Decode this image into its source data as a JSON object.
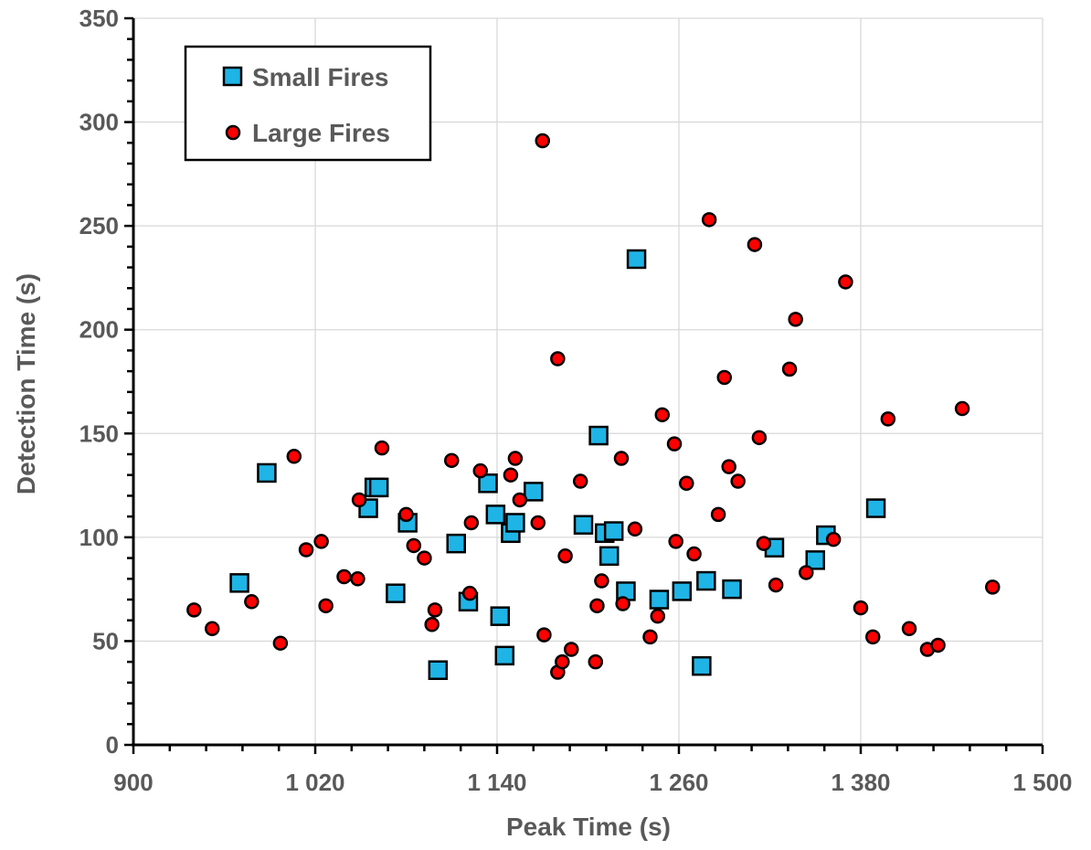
{
  "chart_data": {
    "type": "scatter",
    "xlabel": "Peak Time (s)",
    "ylabel": "Detection Time (s)",
    "xlim": [
      900,
      1500
    ],
    "ylim": [
      0,
      350
    ],
    "x_ticks": [
      900,
      1020,
      1140,
      1260,
      1380,
      1500
    ],
    "x_tick_labels": [
      "900",
      "1 020",
      "1 140",
      "1 260",
      "1 380",
      "1 500"
    ],
    "y_ticks": [
      0,
      50,
      100,
      150,
      200,
      250,
      300,
      350
    ],
    "y_tick_labels": [
      "0",
      "50",
      "100",
      "150",
      "200",
      "250",
      "300",
      "350"
    ],
    "grid": true,
    "legend_position": "top-left",
    "colors": {
      "small": "#1fb4e6",
      "large": "#ff0000",
      "axis": "#000000",
      "grid": "#d9d9d9",
      "text": "#595959"
    },
    "series": [
      {
        "name": "Small Fires",
        "marker": "square",
        "points": [
          [
            970,
            78
          ],
          [
            988,
            131
          ],
          [
            1055,
            114
          ],
          [
            1059,
            124
          ],
          [
            1062,
            124
          ],
          [
            1073,
            73
          ],
          [
            1081,
            107
          ],
          [
            1101,
            36
          ],
          [
            1113,
            97
          ],
          [
            1121,
            69
          ],
          [
            1134,
            126
          ],
          [
            1139,
            111
          ],
          [
            1142,
            62
          ],
          [
            1145,
            43
          ],
          [
            1149,
            102
          ],
          [
            1152,
            107
          ],
          [
            1164,
            122
          ],
          [
            1197,
            106
          ],
          [
            1207,
            149
          ],
          [
            1211,
            102
          ],
          [
            1214,
            91
          ],
          [
            1217,
            103
          ],
          [
            1225,
            74
          ],
          [
            1232,
            234
          ],
          [
            1247,
            70
          ],
          [
            1262,
            74
          ],
          [
            1275,
            38
          ],
          [
            1278,
            79
          ],
          [
            1295,
            75
          ],
          [
            1323,
            95
          ],
          [
            1350,
            89
          ],
          [
            1357,
            101
          ],
          [
            1390,
            114
          ]
        ]
      },
      {
        "name": "Large Fires",
        "marker": "circle",
        "points": [
          [
            940,
            65
          ],
          [
            952,
            56
          ],
          [
            978,
            69
          ],
          [
            997,
            49
          ],
          [
            1006,
            139
          ],
          [
            1014,
            94
          ],
          [
            1024,
            98
          ],
          [
            1027,
            67
          ],
          [
            1039,
            81
          ],
          [
            1048,
            80
          ],
          [
            1049,
            118
          ],
          [
            1064,
            143
          ],
          [
            1080,
            111
          ],
          [
            1085,
            96
          ],
          [
            1092,
            90
          ],
          [
            1097,
            58
          ],
          [
            1099,
            65
          ],
          [
            1110,
            137
          ],
          [
            1122,
            73
          ],
          [
            1123,
            107
          ],
          [
            1129,
            132
          ],
          [
            1149,
            130
          ],
          [
            1152,
            138
          ],
          [
            1155,
            118
          ],
          [
            1167,
            107
          ],
          [
            1170,
            291
          ],
          [
            1171,
            53
          ],
          [
            1180,
            186
          ],
          [
            1180,
            35
          ],
          [
            1183,
            40
          ],
          [
            1185,
            91
          ],
          [
            1189,
            46
          ],
          [
            1195,
            127
          ],
          [
            1205,
            40
          ],
          [
            1206,
            67
          ],
          [
            1209,
            79
          ],
          [
            1222,
            138
          ],
          [
            1223,
            68
          ],
          [
            1231,
            104
          ],
          [
            1241,
            52
          ],
          [
            1246,
            62
          ],
          [
            1249,
            159
          ],
          [
            1257,
            145
          ],
          [
            1258,
            98
          ],
          [
            1265,
            126
          ],
          [
            1270,
            92
          ],
          [
            1280,
            253
          ],
          [
            1286,
            111
          ],
          [
            1290,
            177
          ],
          [
            1293,
            134
          ],
          [
            1299,
            127
          ],
          [
            1310,
            241
          ],
          [
            1313,
            148
          ],
          [
            1316,
            97
          ],
          [
            1324,
            77
          ],
          [
            1333,
            181
          ],
          [
            1337,
            205
          ],
          [
            1344,
            83
          ],
          [
            1362,
            99
          ],
          [
            1370,
            223
          ],
          [
            1380,
            66
          ],
          [
            1388,
            52
          ],
          [
            1398,
            157
          ],
          [
            1412,
            56
          ],
          [
            1424,
            46
          ],
          [
            1431,
            48
          ],
          [
            1447,
            162
          ],
          [
            1467,
            76
          ]
        ]
      }
    ]
  }
}
